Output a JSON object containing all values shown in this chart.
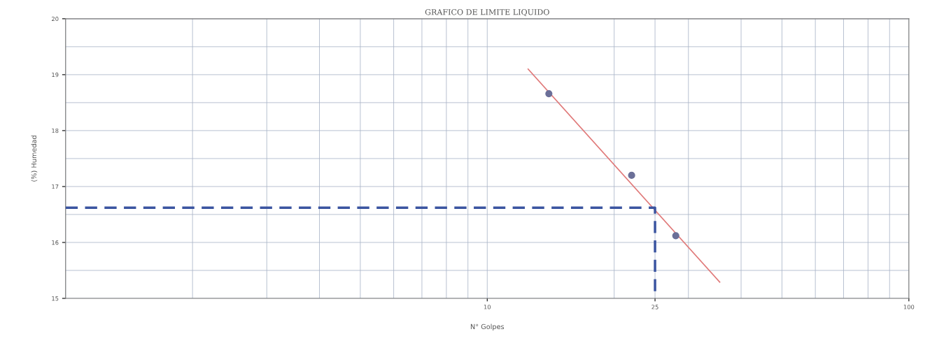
{
  "chart_data": {
    "type": "scatter",
    "title": "GRAFICO DE LIMITE LIQUIDO",
    "xlabel": "N° Golpes",
    "ylabel": "(%) Humedad",
    "log": "x",
    "xlim": [
      1,
      100
    ],
    "xticks": [
      10,
      25,
      100
    ],
    "ylim": [
      15,
      20
    ],
    "yticks": [
      15,
      16,
      17,
      18,
      19,
      20
    ],
    "grid": true,
    "series": [
      {
        "color": "#6b6f98",
        "marker": "circle",
        "x": [
          14,
          22,
          28
        ],
        "values": [
          18.66,
          17.2,
          16.12
        ]
      },
      {
        "type": "line",
        "color": "#e07a7a",
        "line_style": "solid",
        "x": [
          12.5,
          35.6
        ],
        "values": [
          19.1,
          15.29
        ]
      },
      {
        "type": "line",
        "color": "#3a54a0",
        "line_style": "dashed",
        "x": [
          1,
          25,
          25
        ],
        "values": [
          16.62,
          16.62,
          15
        ]
      }
    ]
  }
}
